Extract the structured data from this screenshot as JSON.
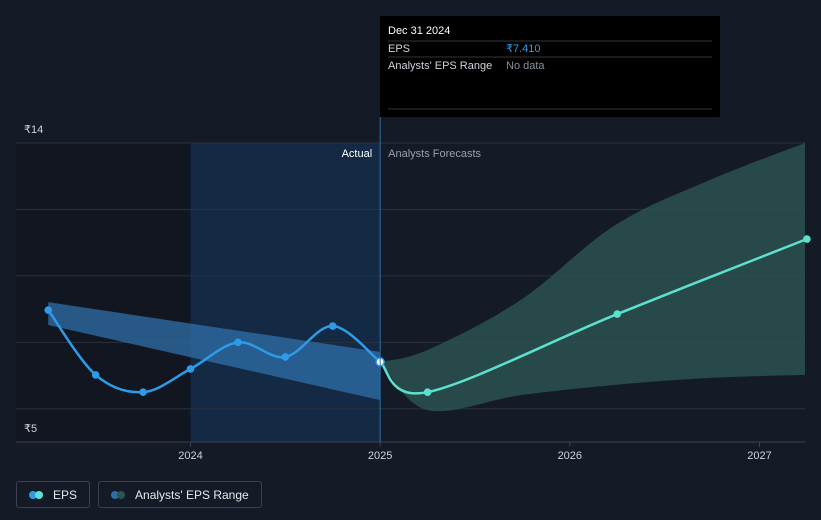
{
  "chart_data": {
    "type": "line",
    "annotations": {
      "actual": "Actual",
      "forecast": "Analysts Forecasts"
    },
    "xlim": [
      2023.08,
      2027.24
    ],
    "xticks": [
      2024,
      2025,
      2026,
      2027
    ],
    "ylim": [
      5,
      14
    ],
    "yticks": [
      {
        "value": 14,
        "label": "₹14"
      },
      {
        "value": 5,
        "label": "₹5"
      }
    ],
    "ygrid": [
      6,
      8,
      10,
      12
    ],
    "highlight_x": [
      2024,
      2025
    ],
    "divider_x": 2025,
    "series": [
      {
        "name": "EPS",
        "color": "#2e9be8",
        "forecast_color": "#5ce0cf",
        "x": [
          2023.25,
          2023.5,
          2023.75,
          2024,
          2024.25,
          2024.5,
          2024.75,
          2025,
          2025.25,
          2026.25,
          2027.25
        ],
        "values": [
          8.97,
          7.02,
          6.5,
          7.2,
          8.0,
          7.56,
          8.49,
          7.41,
          6.5,
          8.85,
          11.11
        ]
      }
    ],
    "ranges": [
      {
        "name": "Analysts' EPS Range",
        "color": "#2f6fa8",
        "forecast_color": "#2c5552",
        "past": {
          "x": [
            2023.25,
            2025
          ],
          "low": [
            8.52,
            6.26
          ],
          "high": [
            9.21,
            7.71
          ]
        },
        "forecast": {
          "x": [
            2025,
            2025.25,
            2025.74,
            2026.24,
            2026.74,
            2027.24
          ],
          "low": [
            7.41,
            5.96,
            6.41,
            6.72,
            6.93,
            7.02
          ],
          "high": [
            7.41,
            7.77,
            9.27,
            11.53,
            12.89,
            14
          ]
        }
      }
    ],
    "tooltip": {
      "date": "Dec 31 2024",
      "eps_label": "EPS",
      "eps_value": "₹7.410",
      "range_label": "Analysts' EPS Range",
      "range_value": "No data"
    }
  }
}
